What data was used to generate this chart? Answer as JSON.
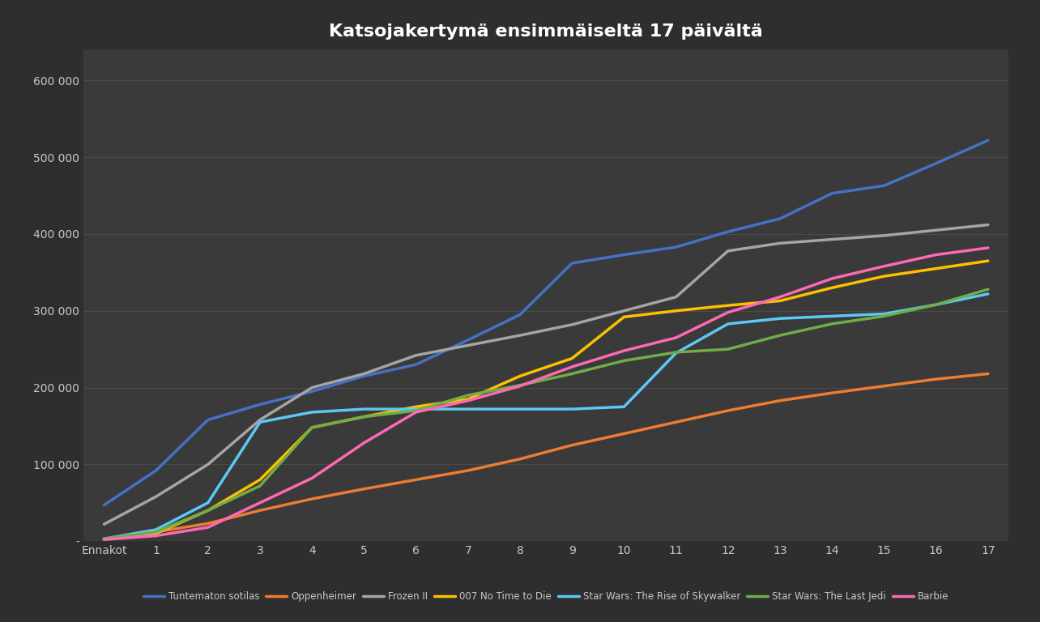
{
  "title": "Katsojakertymä ensimmäiseltä 17 päivältä",
  "x_labels": [
    "Ennakot",
    "1",
    "2",
    "3",
    "4",
    "5",
    "6",
    "7",
    "8",
    "9",
    "10",
    "11",
    "12",
    "13",
    "14",
    "15",
    "16",
    "17"
  ],
  "ylim": [
    0,
    640000
  ],
  "yticks": [
    0,
    100000,
    200000,
    300000,
    400000,
    500000,
    600000
  ],
  "ytick_labels": [
    "-",
    "100 000",
    "200 000",
    "300 000",
    "400 000",
    "500 000",
    "600 000"
  ],
  "background_color": "#2e2e2e",
  "plot_bg_color": "#3a3a3a",
  "grid_color": "#505050",
  "text_color": "#c8c8c8",
  "series": [
    {
      "name": "Tuntematon sotilas",
      "color": "#4472C4",
      "data": [
        47000,
        92000,
        158000,
        178000,
        195000,
        215000,
        230000,
        262000,
        295000,
        362000,
        373000,
        383000,
        403000,
        420000,
        453000,
        463000,
        492000,
        522000
      ]
    },
    {
      "name": "Oppenheimer",
      "color": "#ED7D31",
      "data": [
        3000,
        12000,
        23000,
        40000,
        55000,
        68000,
        80000,
        92000,
        107000,
        125000,
        140000,
        155000,
        170000,
        183000,
        193000,
        202000,
        211000,
        218000
      ]
    },
    {
      "name": "Frozen II",
      "color": "#A5A5A5",
      "data": [
        22000,
        58000,
        100000,
        158000,
        200000,
        218000,
        242000,
        255000,
        268000,
        282000,
        300000,
        318000,
        378000,
        388000,
        393000,
        398000,
        405000,
        412000
      ]
    },
    {
      "name": "007 No Time to Die",
      "color": "#FFC000",
      "data": [
        3000,
        10000,
        40000,
        80000,
        148000,
        162000,
        175000,
        185000,
        215000,
        238000,
        292000,
        300000,
        307000,
        313000,
        330000,
        345000,
        355000,
        365000
      ]
    },
    {
      "name": "Star Wars: The Rise of Skywalker",
      "color": "#5BC8F5",
      "data": [
        3000,
        15000,
        50000,
        155000,
        168000,
        172000,
        172000,
        172000,
        172000,
        172000,
        175000,
        245000,
        283000,
        290000,
        293000,
        296000,
        308000,
        322000
      ]
    },
    {
      "name": "Star Wars: The Last Jedi",
      "color": "#70AD47",
      "data": [
        3000,
        12000,
        40000,
        72000,
        148000,
        162000,
        170000,
        190000,
        203000,
        218000,
        235000,
        246000,
        250000,
        268000,
        283000,
        293000,
        308000,
        328000
      ]
    },
    {
      "name": "Barbie",
      "color": "#FF69B4",
      "data": [
        2000,
        7000,
        18000,
        50000,
        82000,
        128000,
        168000,
        183000,
        202000,
        227000,
        248000,
        265000,
        298000,
        318000,
        342000,
        358000,
        373000,
        382000
      ]
    }
  ]
}
